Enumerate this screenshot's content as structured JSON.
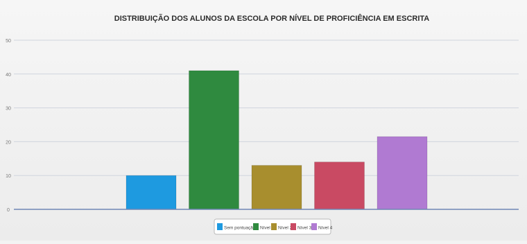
{
  "chart_data": {
    "type": "bar",
    "title": "DISTRIBUIÇÃO DOS ALUNOS DA ESCOLA POR NÍVEL DE PROFICIÊNCIA EM ESCRITA",
    "xlabel": "",
    "ylabel": "",
    "ylim": [
      0,
      50
    ],
    "yticks": [
      "0",
      "10",
      "20",
      "30",
      "40",
      "50"
    ],
    "grid": true,
    "legend_position": "bottom-center",
    "categories": [
      "Sem pontuação",
      "Nível 1",
      "Nível 2",
      "Nível 3",
      "Nível 4"
    ],
    "values": [
      10,
      41,
      13,
      14,
      21.5
    ],
    "colors": [
      "#1e9ae0",
      "#2f8a3f",
      "#a88e2e",
      "#c94a63",
      "#b07ad2"
    ]
  }
}
